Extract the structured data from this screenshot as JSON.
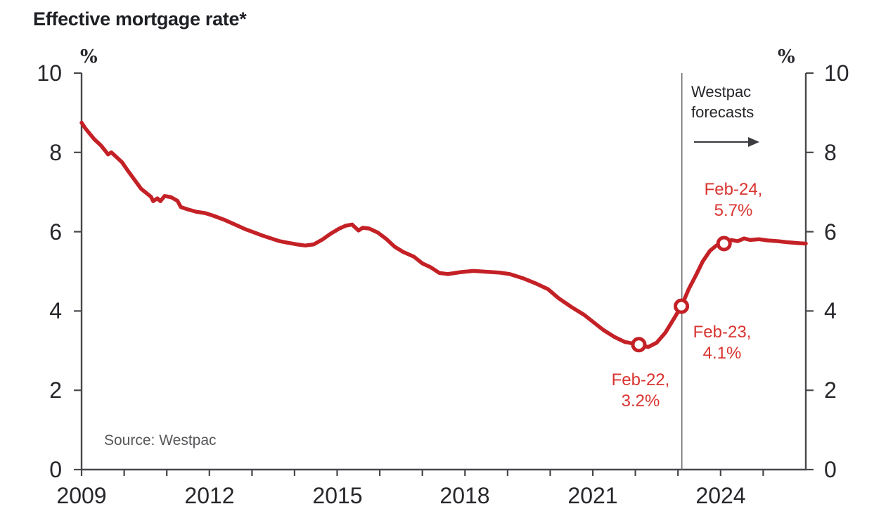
{
  "title": "Effective mortgage rate*",
  "source_note": "Source: Westpac",
  "axis_unit_left": "%",
  "axis_unit_right": "%",
  "forecast_label": {
    "line1": "Westpac",
    "line2": "forecasts"
  },
  "annotations": {
    "feb22": {
      "line1": "Feb-22,",
      "line2": "3.2%"
    },
    "feb23": {
      "line1": "Feb-23,",
      "line2": "4.1%"
    },
    "feb24": {
      "line1": "Feb-24,",
      "line2": "5.7%"
    }
  },
  "colors": {
    "line": "#c42126",
    "annotation": "#d93430",
    "axis": "#47474c",
    "text": "#26262b",
    "title": "#1d1f24",
    "source": "#57575b",
    "forecast_divider": "#707074",
    "arrow": "#3c3c41",
    "marker_fill": "#ffffff"
  },
  "chart_data": {
    "type": "line",
    "title": "Effective mortgage rate*",
    "xlabel": "",
    "ylabel": "%",
    "xlim": [
      2009,
      2026
    ],
    "ylim": [
      0,
      10
    ],
    "yticks": [
      0,
      2,
      4,
      6,
      8,
      10
    ],
    "xticks_labeled": [
      2009,
      2012,
      2015,
      2018,
      2021,
      2024
    ],
    "xticks_minor_start": 2009,
    "xticks_minor_end": 2025,
    "xticks_minor_step": 1,
    "grid": false,
    "legend_position": "none",
    "forecast_divider_x": 2023.09,
    "series": [
      {
        "name": "Effective mortgage rate (%)",
        "points": [
          [
            2009.0,
            8.75
          ],
          [
            2009.08,
            8.62
          ],
          [
            2009.17,
            8.5
          ],
          [
            2009.3,
            8.33
          ],
          [
            2009.45,
            8.18
          ],
          [
            2009.55,
            8.05
          ],
          [
            2009.62,
            7.95
          ],
          [
            2009.7,
            8.0
          ],
          [
            2009.8,
            7.9
          ],
          [
            2009.95,
            7.75
          ],
          [
            2010.1,
            7.52
          ],
          [
            2010.25,
            7.3
          ],
          [
            2010.4,
            7.08
          ],
          [
            2010.55,
            6.95
          ],
          [
            2010.63,
            6.88
          ],
          [
            2010.68,
            6.77
          ],
          [
            2010.78,
            6.84
          ],
          [
            2010.85,
            6.77
          ],
          [
            2010.95,
            6.9
          ],
          [
            2011.1,
            6.87
          ],
          [
            2011.25,
            6.78
          ],
          [
            2011.33,
            6.62
          ],
          [
            2011.5,
            6.56
          ],
          [
            2011.7,
            6.5
          ],
          [
            2011.9,
            6.47
          ],
          [
            2012.1,
            6.4
          ],
          [
            2012.35,
            6.3
          ],
          [
            2012.6,
            6.18
          ],
          [
            2012.85,
            6.06
          ],
          [
            2013.05,
            5.98
          ],
          [
            2013.25,
            5.9
          ],
          [
            2013.45,
            5.83
          ],
          [
            2013.65,
            5.76
          ],
          [
            2013.85,
            5.72
          ],
          [
            2014.05,
            5.68
          ],
          [
            2014.25,
            5.65
          ],
          [
            2014.45,
            5.68
          ],
          [
            2014.65,
            5.8
          ],
          [
            2014.85,
            5.95
          ],
          [
            2015.05,
            6.08
          ],
          [
            2015.2,
            6.15
          ],
          [
            2015.35,
            6.18
          ],
          [
            2015.5,
            6.03
          ],
          [
            2015.6,
            6.1
          ],
          [
            2015.75,
            6.08
          ],
          [
            2015.95,
            5.98
          ],
          [
            2016.15,
            5.82
          ],
          [
            2016.35,
            5.62
          ],
          [
            2016.55,
            5.49
          ],
          [
            2016.8,
            5.37
          ],
          [
            2017.0,
            5.2
          ],
          [
            2017.2,
            5.1
          ],
          [
            2017.4,
            4.96
          ],
          [
            2017.6,
            4.93
          ],
          [
            2017.9,
            4.98
          ],
          [
            2018.2,
            5.01
          ],
          [
            2018.5,
            4.99
          ],
          [
            2018.8,
            4.97
          ],
          [
            2019.05,
            4.93
          ],
          [
            2019.35,
            4.83
          ],
          [
            2019.65,
            4.7
          ],
          [
            2019.95,
            4.55
          ],
          [
            2020.2,
            4.32
          ],
          [
            2020.5,
            4.1
          ],
          [
            2020.8,
            3.9
          ],
          [
            2021.0,
            3.73
          ],
          [
            2021.25,
            3.52
          ],
          [
            2021.5,
            3.35
          ],
          [
            2021.75,
            3.22
          ],
          [
            2022.08,
            3.15
          ],
          [
            2022.3,
            3.09
          ],
          [
            2022.5,
            3.2
          ],
          [
            2022.7,
            3.45
          ],
          [
            2022.9,
            3.8
          ],
          [
            2023.08,
            4.12
          ],
          [
            2023.25,
            4.55
          ],
          [
            2023.42,
            4.9
          ],
          [
            2023.58,
            5.25
          ],
          [
            2023.75,
            5.52
          ],
          [
            2023.9,
            5.65
          ],
          [
            2024.08,
            5.7
          ],
          [
            2024.25,
            5.79
          ],
          [
            2024.4,
            5.76
          ],
          [
            2024.55,
            5.83
          ],
          [
            2024.7,
            5.79
          ],
          [
            2024.9,
            5.81
          ],
          [
            2025.1,
            5.78
          ],
          [
            2025.35,
            5.76
          ],
          [
            2025.6,
            5.73
          ],
          [
            2025.85,
            5.71
          ],
          [
            2026.0,
            5.7
          ]
        ]
      }
    ],
    "markers": [
      {
        "x": 2022.08,
        "y": 3.15,
        "label": "Feb-22, 3.2%"
      },
      {
        "x": 2023.08,
        "y": 4.12,
        "label": "Feb-23, 4.1%"
      },
      {
        "x": 2024.08,
        "y": 5.7,
        "label": "Feb-24, 5.7%"
      }
    ],
    "annotations_text": [
      "Westpac forecasts",
      "Feb-22, 3.2%",
      "Feb-23, 4.1%",
      "Feb-24, 5.7%"
    ],
    "source": "Source: Westpac"
  }
}
